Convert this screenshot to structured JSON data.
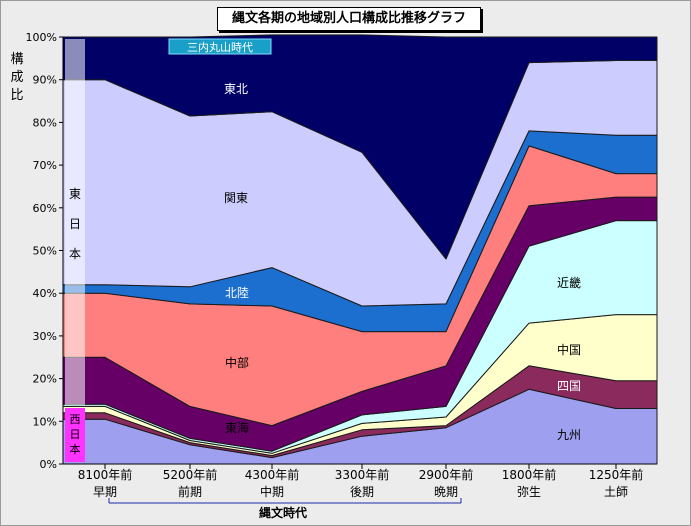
{
  "chart_data": {
    "type": "area",
    "stacked": true,
    "title": "縄文各期の地域別人口構成比推移グラフ",
    "ylabel": "構成比",
    "ylim": [
      0,
      100
    ],
    "yticks": [
      "0%",
      "10%",
      "20%",
      "30%",
      "40%",
      "50%",
      "60%",
      "70%",
      "80%",
      "90%",
      "100%"
    ],
    "x_ticks": [
      {
        "top": "8100年前",
        "bottom": "早期"
      },
      {
        "top": "5200年前",
        "bottom": "前期"
      },
      {
        "top": "4300年前",
        "bottom": "中期"
      },
      {
        "top": "3300年前",
        "bottom": "後期"
      },
      {
        "top": "2900年前",
        "bottom": "晩期"
      },
      {
        "top": "1800年前",
        "bottom": "弥生"
      },
      {
        "top": "1250年前",
        "bottom": "土師"
      }
    ],
    "x_axis_title": "縄文時代",
    "series": [
      {
        "name": "九州",
        "color": "#9f9ff0",
        "values": [
          10.5,
          4.5,
          1.5,
          6.5,
          8.5,
          17.5,
          13
        ]
      },
      {
        "name": "四国",
        "color": "#8b2a5c",
        "values": [
          1.5,
          0.5,
          0.5,
          1.5,
          0.5,
          5.5,
          6.5
        ]
      },
      {
        "name": "中国",
        "color": "#ffffcc",
        "values": [
          1.5,
          0.5,
          0.5,
          1.5,
          2,
          10,
          15.5
        ]
      },
      {
        "name": "近畿",
        "color": "#ccffff",
        "values": [
          0.5,
          0.5,
          0.5,
          2,
          2.5,
          18,
          22
        ]
      },
      {
        "name": "東海",
        "color": "#660066",
        "values": [
          11,
          7.5,
          6,
          5.5,
          9.5,
          9.5,
          5.5
        ]
      },
      {
        "name": "中部",
        "color": "#ff7f7f",
        "values": [
          15,
          24,
          28,
          14,
          8,
          14,
          5.5
        ]
      },
      {
        "name": "北陸",
        "color": "#1c6fcf",
        "values": [
          2,
          4,
          9,
          6,
          6.5,
          3.5,
          9
        ]
      },
      {
        "name": "関東",
        "color": "#ccccff",
        "values": [
          48,
          40,
          36.5,
          36,
          10.5,
          16,
          17.5
        ]
      },
      {
        "name": "東北",
        "color": "#000066",
        "values": [
          10,
          18.5,
          18,
          27.5,
          52,
          6,
          5.5
        ]
      }
    ],
    "annotations": {
      "sannai": "三内丸山時代",
      "east": "東日本",
      "east_chars": [
        "東",
        "日",
        "本"
      ],
      "west": "西日本",
      "west_chars": [
        "西",
        "日",
        "本"
      ]
    }
  }
}
